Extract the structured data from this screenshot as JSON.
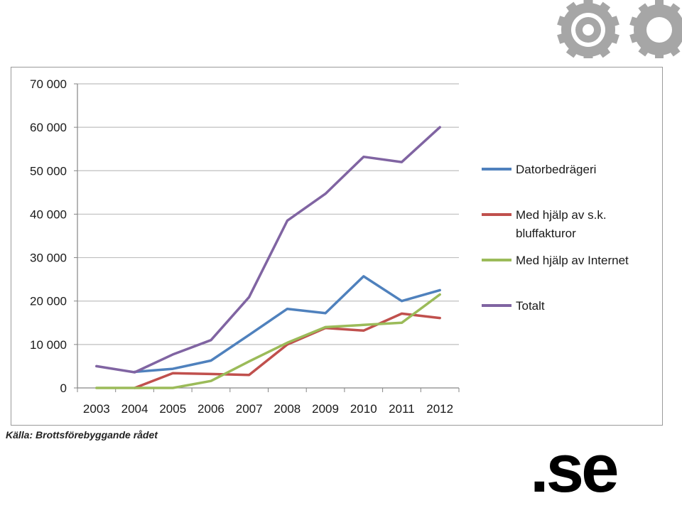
{
  "brand": {
    "logo_text": ".se"
  },
  "source_note": "Källa: Brottsförebyggande rådet",
  "colors": {
    "grid": "#bfbfbf",
    "axis": "#868686",
    "gear": "#a6a6a6"
  },
  "chart_data": {
    "type": "line",
    "x": [
      "2003",
      "2004",
      "2005",
      "2006",
      "2007",
      "2008",
      "2009",
      "2010",
      "2011",
      "2012"
    ],
    "ylim": [
      0,
      70000
    ],
    "yticks": [
      0,
      10000,
      20000,
      30000,
      40000,
      50000,
      60000,
      70000
    ],
    "ytick_labels": [
      "0",
      "10 000",
      "20 000",
      "30 000",
      "40 000",
      "50 000",
      "60 000",
      "70 000"
    ],
    "grid": true,
    "legend_position": "right",
    "series": [
      {
        "name": "Datorbedrägeri",
        "color": "#4f81bd",
        "values": [
          null,
          3700,
          4400,
          6300,
          12200,
          18200,
          17200,
          25700,
          20000,
          22500
        ]
      },
      {
        "name": "Med hjälp av s.k. bluffakturor",
        "color": "#c0504d",
        "values": [
          null,
          0,
          3400,
          3200,
          3000,
          10000,
          13800,
          13200,
          17100,
          16100
        ]
      },
      {
        "name": "Med hjälp av Internet",
        "color": "#9bbb59",
        "values": [
          0,
          0,
          0,
          1600,
          6100,
          10400,
          14000,
          14500,
          15000,
          21500
        ]
      },
      {
        "name": "Totalt",
        "color": "#8064a2",
        "values": [
          5000,
          3600,
          7700,
          11000,
          20900,
          38500,
          44700,
          53200,
          52000,
          60000
        ]
      }
    ]
  }
}
